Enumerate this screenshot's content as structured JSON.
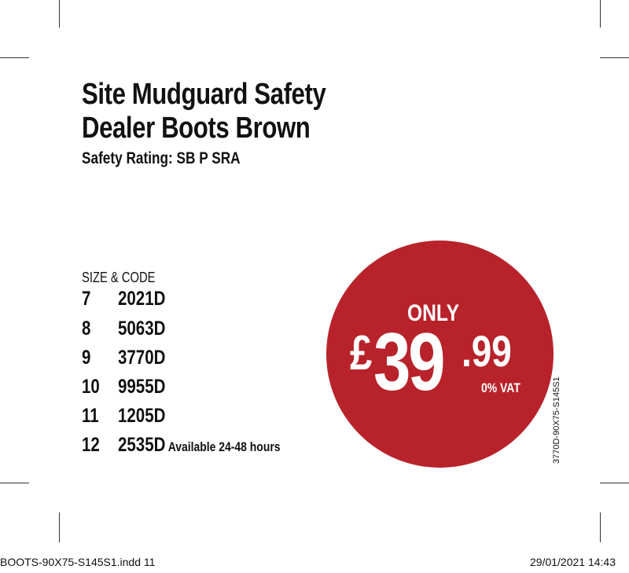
{
  "product": {
    "title_line1": "Site Mudguard Safety",
    "title_line2": "Dealer Boots Brown",
    "safety_rating": "Safety Rating: SB P SRA"
  },
  "sizes": {
    "header": "SIZE & CODE",
    "rows": [
      {
        "size": "7",
        "code": "2021D",
        "note": ""
      },
      {
        "size": "8",
        "code": "5063D",
        "note": ""
      },
      {
        "size": "9",
        "code": "3770D",
        "note": ""
      },
      {
        "size": "10",
        "code": "9955D",
        "note": ""
      },
      {
        "size": "11",
        "code": "1205D",
        "note": ""
      },
      {
        "size": "12",
        "code": "2535D",
        "note": "Available 24-48 hours"
      }
    ]
  },
  "price": {
    "prefix": "ONLY",
    "currency": "£",
    "whole": "39",
    "fraction": ".99",
    "vat": "0% VAT",
    "badge_color": "#b8232b"
  },
  "vertical_code": "3770D-90X75-S145S1",
  "slug": {
    "file": "BOOTS-90X75-S145S1.indd   11",
    "datetime": "29/01/2021   14:43"
  }
}
